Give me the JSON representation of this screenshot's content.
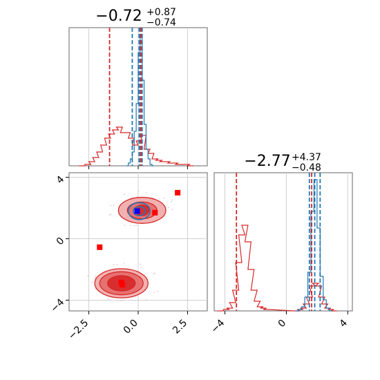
{
  "chart_data": [
    {
      "type": "histogram",
      "panel": "marginal-param-1",
      "title_main": "−0.72",
      "title_sup": "+0.87",
      "title_sub": "−0.74",
      "xlim": [
        -3.5,
        3.5
      ],
      "x_ticks": [
        -2.5,
        0.0,
        2.5
      ],
      "series": [
        {
          "color": "#d62728",
          "bins": [
            [
              -3.0,
              0.0
            ],
            [
              -2.7,
              0.01
            ],
            [
              -2.5,
              0.03
            ],
            [
              -2.3,
              0.06
            ],
            [
              -2.1,
              0.1
            ],
            [
              -1.9,
              0.15
            ],
            [
              -1.7,
              0.2
            ],
            [
              -1.5,
              0.23
            ],
            [
              -1.3,
              0.26
            ],
            [
              -1.1,
              0.28
            ],
            [
              -0.9,
              0.24
            ],
            [
              -0.7,
              0.24
            ],
            [
              -0.5,
              0.2
            ],
            [
              -0.3,
              0.15
            ],
            [
              -0.1,
              0.18
            ],
            [
              0.1,
              0.22
            ],
            [
              0.3,
              0.12
            ],
            [
              0.5,
              0.09
            ],
            [
              0.7,
              0.05
            ],
            [
              0.9,
              0.04
            ],
            [
              1.1,
              0.03
            ],
            [
              1.3,
              0.03
            ],
            [
              1.5,
              0.02
            ],
            [
              1.7,
              0.02
            ],
            [
              1.9,
              0.01
            ],
            [
              2.1,
              0.01
            ],
            [
              2.3,
              0.01
            ],
            [
              2.5,
              0.0
            ]
          ],
          "quantile_lines": [
            -1.45,
            0.12,
            0.18
          ]
        },
        {
          "color": "#1f77b4",
          "bins": [
            [
              -0.6,
              0.0
            ],
            [
              -0.5,
              0.02
            ],
            [
              -0.4,
              0.05
            ],
            [
              -0.3,
              0.1
            ],
            [
              -0.2,
              0.25
            ],
            [
              -0.1,
              0.45
            ],
            [
              0.0,
              0.82
            ],
            [
              0.1,
              0.95
            ],
            [
              0.2,
              0.62
            ],
            [
              0.3,
              0.3
            ],
            [
              0.4,
              0.12
            ],
            [
              0.5,
              0.05
            ],
            [
              0.6,
              0.01
            ],
            [
              0.7,
              0.0
            ]
          ],
          "quantile_lines": [
            -0.3,
            0.05,
            0.2
          ]
        }
      ]
    },
    {
      "type": "contour",
      "panel": "joint-param-1-vs-param-2",
      "xlim": [
        -3.5,
        3.5
      ],
      "ylim": [
        -4.7,
        4.3
      ],
      "x_ticks": [
        -2.5,
        0.0,
        2.5
      ],
      "y_ticks": [
        4,
        0,
        -4
      ],
      "contours": [
        {
          "color": "#d62728",
          "cx": -0.85,
          "cy": -2.9,
          "levels": [
            [
              1.35,
              0.95
            ],
            [
              1.1,
              0.75
            ],
            [
              0.7,
              0.5
            ]
          ]
        },
        {
          "color": "#d62728",
          "cx": 0.2,
          "cy": 1.85,
          "levels": [
            [
              1.2,
              0.85
            ],
            [
              0.75,
              0.55
            ],
            [
              0.35,
              0.35
            ]
          ]
        },
        {
          "color": "#1f77b4",
          "cx": 0.05,
          "cy": 1.8,
          "levels": [
            [
              0.55,
              0.55
            ],
            [
              0.3,
              0.3
            ]
          ]
        }
      ],
      "markers": [
        {
          "color": "#ff0000",
          "x": 2.0,
          "y": 3.0
        },
        {
          "color": "#ff0000",
          "x": 0.85,
          "y": 1.7
        },
        {
          "color": "#ff0000",
          "x": -1.95,
          "y": -0.55
        },
        {
          "color": "#ff0000",
          "x": -0.85,
          "y": -2.85
        },
        {
          "color": "#ff0000",
          "x": -0.8,
          "y": -3.0
        },
        {
          "color": "#0000ff",
          "x": -0.05,
          "y": 1.8
        }
      ]
    },
    {
      "type": "histogram",
      "panel": "marginal-param-2",
      "title_main": "−2.77",
      "title_sup": "+4.37",
      "title_sub": "−0.48",
      "xlim": [
        -4.7,
        4.3
      ],
      "x_ticks": [
        -4,
        0,
        4
      ],
      "series": [
        {
          "color": "#d62728",
          "bins": [
            [
              -4.5,
              0.0
            ],
            [
              -4.1,
              0.01
            ],
            [
              -3.9,
              0.02
            ],
            [
              -3.7,
              0.06
            ],
            [
              -3.5,
              0.15
            ],
            [
              -3.3,
              0.35
            ],
            [
              -3.1,
              0.55
            ],
            [
              -2.9,
              0.62
            ],
            [
              -2.7,
              0.5
            ],
            [
              -2.5,
              0.3
            ],
            [
              -2.3,
              0.15
            ],
            [
              -2.1,
              0.07
            ],
            [
              -1.9,
              0.03
            ],
            [
              -1.7,
              0.02
            ],
            [
              -1.5,
              0.01
            ],
            [
              0.5,
              0.0
            ],
            [
              0.7,
              0.01
            ],
            [
              0.9,
              0.02
            ],
            [
              1.1,
              0.05
            ],
            [
              1.3,
              0.1
            ],
            [
              1.5,
              0.18
            ],
            [
              1.7,
              0.2
            ],
            [
              1.9,
              0.18
            ],
            [
              2.1,
              0.1
            ],
            [
              2.3,
              0.05
            ],
            [
              2.5,
              0.02
            ],
            [
              2.7,
              0.01
            ],
            [
              2.9,
              0.0
            ]
          ],
          "quantile_lines": [
            -3.25,
            1.65
          ]
        },
        {
          "color": "#1f77b4",
          "bins": [
            [
              0.6,
              0.0
            ],
            [
              0.8,
              0.01
            ],
            [
              1.0,
              0.03
            ],
            [
              1.2,
              0.1
            ],
            [
              1.4,
              0.28
            ],
            [
              1.6,
              0.72
            ],
            [
              1.8,
              0.95
            ],
            [
              2.0,
              0.6
            ],
            [
              2.2,
              0.25
            ],
            [
              2.4,
              0.08
            ],
            [
              2.6,
              0.02
            ],
            [
              2.8,
              0.0
            ]
          ],
          "quantile_lines": [
            1.5,
            1.85,
            2.2
          ]
        }
      ]
    }
  ]
}
